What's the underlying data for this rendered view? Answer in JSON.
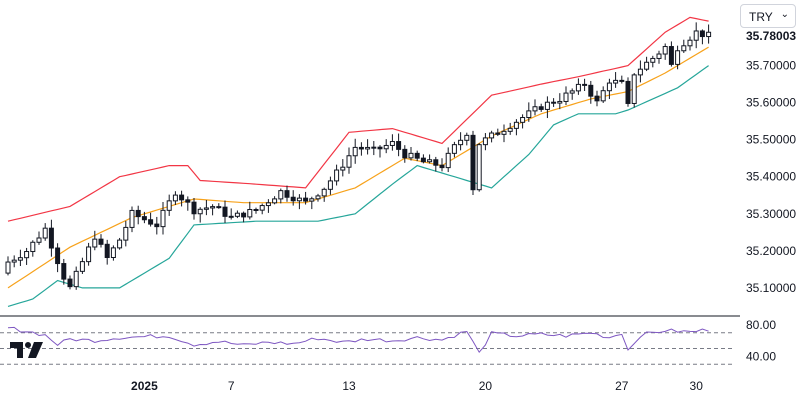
{
  "currency_selector": {
    "label": "TRY",
    "chevron_icon": "chevron-down-icon"
  },
  "logo_icon": "tradingview-logo-icon",
  "colors": {
    "upper_band": "#f23645",
    "middle_band": "#f7a21b",
    "lower_band": "#26a69a",
    "candle": "#131722",
    "rsi_line": "#7e57c2",
    "grid_dash": "#787b86"
  },
  "chart_data": [
    {
      "type": "candlestick",
      "title": "",
      "price_axis": {
        "ticks": [
          "35.10000",
          "35.20000",
          "35.30000",
          "35.40000",
          "35.50000",
          "35.60000",
          "35.70000"
        ],
        "range": [
          35.035,
          35.85
        ],
        "last_price": "35.78003"
      },
      "time_axis": {
        "ticks": [
          {
            "label": "2025",
            "bold": true,
            "index": 22
          },
          {
            "label": "7",
            "bold": false,
            "index": 36
          },
          {
            "label": "13",
            "bold": false,
            "index": 55
          },
          {
            "label": "20",
            "bold": false,
            "index": 77
          },
          {
            "label": "27",
            "bold": false,
            "index": 99
          },
          {
            "label": "30",
            "bold": false,
            "index": 111
          }
        ]
      },
      "close_anchors": [
        [
          0,
          35.17
        ],
        [
          3,
          35.2
        ],
        [
          6,
          35.26
        ],
        [
          9,
          35.13
        ],
        [
          10,
          35.1
        ],
        [
          12,
          35.17
        ],
        [
          14,
          35.24
        ],
        [
          16,
          35.18
        ],
        [
          18,
          35.23
        ],
        [
          20,
          35.3
        ],
        [
          24,
          35.27
        ],
        [
          27,
          35.36
        ],
        [
          30,
          35.31
        ],
        [
          33,
          35.32
        ],
        [
          36,
          35.29
        ],
        [
          40,
          35.31
        ],
        [
          44,
          35.36
        ],
        [
          48,
          35.33
        ],
        [
          51,
          35.37
        ],
        [
          53,
          35.41
        ],
        [
          56,
          35.48
        ],
        [
          59,
          35.47
        ],
        [
          62,
          35.49
        ],
        [
          64,
          35.46
        ],
        [
          67,
          35.44
        ],
        [
          70,
          35.43
        ],
        [
          72,
          35.48
        ],
        [
          74,
          35.52
        ],
        [
          75,
          35.37
        ],
        [
          76,
          35.49
        ],
        [
          80,
          35.53
        ],
        [
          83,
          35.56
        ],
        [
          86,
          35.59
        ],
        [
          89,
          35.61
        ],
        [
          91,
          35.63
        ],
        [
          93,
          35.65
        ],
        [
          95,
          35.6
        ],
        [
          97,
          35.66
        ],
        [
          99,
          35.65
        ],
        [
          100,
          35.59
        ],
        [
          101,
          35.68
        ],
        [
          104,
          35.72
        ],
        [
          106,
          35.75
        ],
        [
          107,
          35.7
        ],
        [
          108,
          35.75
        ],
        [
          111,
          35.79
        ],
        [
          113,
          35.78003
        ]
      ],
      "band_anchors": {
        "upper": [
          [
            0,
            35.28
          ],
          [
            10,
            35.32
          ],
          [
            18,
            35.4
          ],
          [
            26,
            35.43
          ],
          [
            29,
            35.43
          ],
          [
            31,
            35.39
          ],
          [
            40,
            35.38
          ],
          [
            48,
            35.37
          ],
          [
            55,
            35.52
          ],
          [
            62,
            35.53
          ],
          [
            70,
            35.49
          ],
          [
            78,
            35.62
          ],
          [
            86,
            35.65
          ],
          [
            92,
            35.67
          ],
          [
            100,
            35.7
          ],
          [
            106,
            35.79
          ],
          [
            110,
            35.83
          ],
          [
            113,
            35.82
          ]
        ],
        "middle": [
          [
            0,
            35.1
          ],
          [
            10,
            35.21
          ],
          [
            20,
            35.29
          ],
          [
            30,
            35.34
          ],
          [
            38,
            35.33
          ],
          [
            48,
            35.33
          ],
          [
            56,
            35.37
          ],
          [
            64,
            35.45
          ],
          [
            70,
            35.43
          ],
          [
            78,
            35.51
          ],
          [
            86,
            35.57
          ],
          [
            94,
            35.61
          ],
          [
            100,
            35.63
          ],
          [
            106,
            35.68
          ],
          [
            113,
            35.75
          ]
        ],
        "lower": [
          [
            0,
            35.05
          ],
          [
            4,
            35.07
          ],
          [
            8,
            35.12
          ],
          [
            12,
            35.1
          ],
          [
            18,
            35.1
          ],
          [
            26,
            35.18
          ],
          [
            30,
            35.27
          ],
          [
            40,
            35.28
          ],
          [
            50,
            35.28
          ],
          [
            56,
            35.3
          ],
          [
            62,
            35.38
          ],
          [
            66,
            35.43
          ],
          [
            72,
            35.4
          ],
          [
            78,
            35.37
          ],
          [
            84,
            35.46
          ],
          [
            88,
            35.54
          ],
          [
            92,
            35.57
          ],
          [
            98,
            35.57
          ],
          [
            100,
            35.58
          ],
          [
            104,
            35.61
          ],
          [
            108,
            35.64
          ],
          [
            113,
            35.7
          ]
        ]
      }
    },
    {
      "type": "line",
      "title": "",
      "axis_ticks": [
        "80.00",
        "40.00"
      ],
      "reference_lines": [
        70,
        50,
        30
      ],
      "range": [
        10,
        90
      ],
      "y_anchors": [
        [
          0,
          76
        ],
        [
          3,
          72
        ],
        [
          6,
          67
        ],
        [
          8,
          55
        ],
        [
          10,
          62
        ],
        [
          14,
          60
        ],
        [
          18,
          64
        ],
        [
          22,
          65
        ],
        [
          26,
          66
        ],
        [
          30,
          55
        ],
        [
          34,
          59
        ],
        [
          38,
          54
        ],
        [
          42,
          58
        ],
        [
          46,
          56
        ],
        [
          50,
          63
        ],
        [
          54,
          58
        ],
        [
          58,
          62
        ],
        [
          62,
          60
        ],
        [
          66,
          64
        ],
        [
          70,
          61
        ],
        [
          74,
          72
        ],
        [
          76,
          44
        ],
        [
          78,
          69
        ],
        [
          82,
          66
        ],
        [
          86,
          68
        ],
        [
          90,
          66
        ],
        [
          94,
          70
        ],
        [
          97,
          64
        ],
        [
          99,
          70
        ],
        [
          100,
          48
        ],
        [
          102,
          67
        ],
        [
          106,
          73
        ],
        [
          110,
          71
        ],
        [
          113,
          74
        ]
      ]
    }
  ]
}
